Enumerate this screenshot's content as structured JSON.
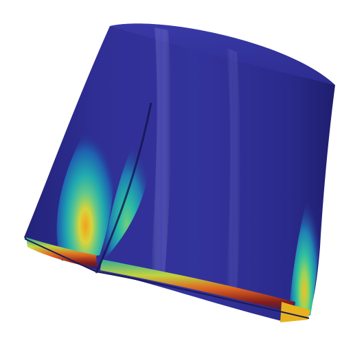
{
  "scene": {
    "subject": "deformed-cylindrical-shell-contour",
    "background_color": "#ffffff",
    "colormap": [
      "#2a2a8e",
      "#1f4fb0",
      "#1f8fb5",
      "#22b8a6",
      "#5fd08a",
      "#c9dc3a",
      "#f2b51f",
      "#e5661a",
      "#b0251a",
      "#6b1212"
    ],
    "base_color": "#2c2c8f"
  }
}
